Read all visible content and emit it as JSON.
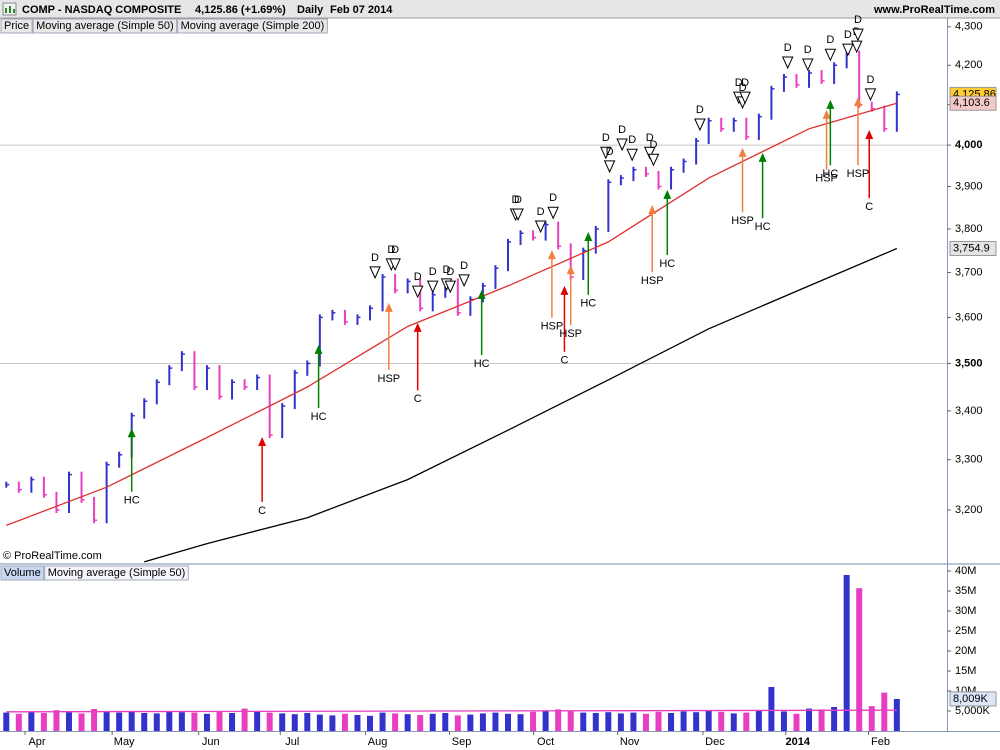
{
  "header": {
    "title": "COMP - NASDAQ COMPOSITE",
    "quote": "4,125.86 (+1.69%)",
    "period": "Daily",
    "date": "Feb 07 2014",
    "site": "www.ProRealTime.com"
  },
  "chart_data": [
    {
      "type": "price",
      "yscale": "log",
      "credit": "© ProRealTime.com",
      "xlim": [
        -0.5,
        75
      ],
      "ylim": [
        3098,
        4371
      ],
      "yticks": [
        {
          "value": 3200,
          "label": "3,200"
        },
        {
          "value": 3300,
          "label": "3,300"
        },
        {
          "value": 3400,
          "label": "3,400"
        },
        {
          "value": 3500,
          "label": "3,500"
        },
        {
          "value": 3600,
          "label": "3,600"
        },
        {
          "value": 3700,
          "label": "3,700"
        },
        {
          "value": 3800,
          "label": "3,800"
        },
        {
          "value": 3900,
          "label": "3,900"
        },
        {
          "value": 4000,
          "label": "4,000"
        },
        {
          "value": 4100,
          "label": "4,100"
        },
        {
          "value": 4200,
          "label": "4,200"
        },
        {
          "value": 4300,
          "label": "4,300"
        }
      ],
      "gridlines": [
        3500,
        4000
      ],
      "series": [
        {
          "name": "Price",
          "color": "#3333cc",
          "down_color": "#e83fc0",
          "values": [
            3250,
            3240,
            3260,
            3230,
            3200,
            3270,
            3220,
            3180,
            3290,
            3310,
            3390,
            3420,
            3460,
            3490,
            3520,
            3450,
            3490,
            3430,
            3460,
            3450,
            3470,
            3350,
            3410,
            3480,
            3500,
            3600,
            3610,
            3590,
            3600,
            3620,
            3690,
            3660,
            3680,
            3620,
            3650,
            3680,
            3610,
            3640,
            3670,
            3710,
            3770,
            3790,
            3780,
            3810,
            3760,
            3690,
            3750,
            3800,
            3910,
            3920,
            3940,
            3930,
            3900,
            3940,
            3960,
            4010,
            4060,
            4040,
            4060,
            4020,
            4070,
            4140,
            4170,
            4150,
            4180,
            4160,
            4200,
            4230,
            4100,
            4090,
            4040,
            4125.86
          ]
        },
        {
          "name": "Moving average (Simple 50)",
          "color": "#e03030",
          "label_color": "#e03030",
          "x": [
            0,
            8,
            16,
            24,
            32,
            40,
            48,
            56,
            64,
            71
          ],
          "values": [
            3170,
            3245,
            3345,
            3450,
            3580,
            3670,
            3770,
            3920,
            4040,
            4103.6
          ]
        },
        {
          "name": "Moving average (Simple 200)",
          "color": "#000000",
          "x": [
            11,
            16,
            24,
            32,
            40,
            48,
            56,
            64,
            71
          ],
          "values": [
            3100,
            3135,
            3185,
            3260,
            3360,
            3465,
            3575,
            3670,
            3754.9
          ]
        }
      ],
      "last_labels": [
        {
          "value": 4125.86,
          "label": "4,125.86",
          "color": "#ffcc33"
        },
        {
          "value": 4103.6,
          "label": "4,103.6",
          "color": "#f5c8c8"
        },
        {
          "value": 3754.9,
          "label": "3,754.9",
          "color": "#e4e4e4"
        }
      ],
      "signal_colors": {
        "HC": "#008000",
        "C": "#e00000",
        "HSP": "#f08040"
      },
      "markers": [
        {
          "text": "D",
          "x": 29.4,
          "y": 3688
        },
        {
          "text": "D",
          "x": 30.7,
          "y": 3706
        },
        {
          "text": "D",
          "x": 31.0,
          "y": 3706
        },
        {
          "text": "D",
          "x": 32.8,
          "y": 3645
        },
        {
          "text": "D",
          "x": 34.0,
          "y": 3656
        },
        {
          "text": "D",
          "x": 35.1,
          "y": 3661
        },
        {
          "text": "D",
          "x": 35.4,
          "y": 3656
        },
        {
          "text": "D",
          "x": 36.5,
          "y": 3670
        },
        {
          "text": "D",
          "x": 40.6,
          "y": 3821
        },
        {
          "text": "D",
          "x": 40.8,
          "y": 3821
        },
        {
          "text": "D",
          "x": 42.6,
          "y": 3793
        },
        {
          "text": "D",
          "x": 43.6,
          "y": 3825
        },
        {
          "text": "D",
          "x": 47.8,
          "y": 3968
        },
        {
          "text": "D",
          "x": 48.1,
          "y": 3935
        },
        {
          "text": "D",
          "x": 49.1,
          "y": 3988
        },
        {
          "text": "D",
          "x": 49.9,
          "y": 3963
        },
        {
          "text": "D",
          "x": 51.3,
          "y": 3968
        },
        {
          "text": "D",
          "x": 51.6,
          "y": 3951
        },
        {
          "text": "D",
          "x": 55.3,
          "y": 4037
        },
        {
          "text": "D",
          "x": 58.4,
          "y": 4104
        },
        {
          "text": "D",
          "x": 58.7,
          "y": 4092
        },
        {
          "text": "D",
          "x": 58.9,
          "y": 4104
        },
        {
          "text": "D",
          "x": 62.3,
          "y": 4193
        },
        {
          "text": "D",
          "x": 63.9,
          "y": 4188
        },
        {
          "text": "D",
          "x": 65.7,
          "y": 4213
        },
        {
          "text": "D",
          "x": 67.1,
          "y": 4226
        },
        {
          "text": "D",
          "x": 67.8,
          "y": 4234
        },
        {
          "text": "D",
          "x": 67.9,
          "y": 4265
        },
        {
          "text": "D",
          "x": 68.9,
          "y": 4112
        }
      ],
      "signals": [
        {
          "text": "HC",
          "x": 10.0,
          "y": 3364,
          "y0": 3236
        },
        {
          "text": "C",
          "x": 20.4,
          "y": 3346,
          "y0": 3216
        },
        {
          "text": "HC",
          "x": 24.9,
          "y": 3540,
          "y0": 3406
        },
        {
          "text": "HSP",
          "x": 30.5,
          "y": 3632,
          "y0": 3486
        },
        {
          "text": "C",
          "x": 32.8,
          "y": 3588,
          "y0": 3443
        },
        {
          "text": "HC",
          "x": 37.9,
          "y": 3661,
          "y0": 3518
        },
        {
          "text": "HSP",
          "x": 43.5,
          "y": 3751,
          "y0": 3599
        },
        {
          "text": "C",
          "x": 44.5,
          "y": 3670,
          "y0": 3525
        },
        {
          "text": "HSP",
          "x": 45.0,
          "y": 3717,
          "y0": 3583
        },
        {
          "text": "HC",
          "x": 46.4,
          "y": 3793,
          "y0": 3650
        },
        {
          "text": "HSP",
          "x": 51.5,
          "y": 3856,
          "y0": 3701
        },
        {
          "text": "HC",
          "x": 52.7,
          "y": 3892,
          "y0": 3740
        },
        {
          "text": "HSP",
          "x": 58.7,
          "y": 3993,
          "y0": 3839
        },
        {
          "text": "HC",
          "x": 60.3,
          "y": 3981,
          "y0": 3825
        },
        {
          "text": "HSP",
          "x": 65.4,
          "y": 4087,
          "y0": 3940
        },
        {
          "text": "HC",
          "x": 65.7,
          "y": 4112,
          "y0": 3951
        },
        {
          "text": "HSP",
          "x": 67.9,
          "y": 4119,
          "y0": 3951
        },
        {
          "text": "C",
          "x": 68.8,
          "y": 4037,
          "y0": 3872
        }
      ]
    },
    {
      "type": "volume",
      "xlim": [
        -0.5,
        75
      ],
      "ylim": [
        0,
        41.5
      ],
      "xticks": [
        {
          "value": 2.45,
          "label": "Apr"
        },
        {
          "value": 9.4,
          "label": "May"
        },
        {
          "value": 16.3,
          "label": "Jun"
        },
        {
          "value": 22.8,
          "label": "Jul"
        },
        {
          "value": 29.6,
          "label": "Aug"
        },
        {
          "value": 36.3,
          "label": "Sep"
        },
        {
          "value": 43.0,
          "label": "Oct"
        },
        {
          "value": 49.7,
          "label": "Nov"
        },
        {
          "value": 56.5,
          "label": "Dec"
        },
        {
          "value": 63.1,
          "label": "2014"
        },
        {
          "value": 69.7,
          "label": "Feb"
        }
      ],
      "yticks": [
        {
          "value": 5,
          "label": "5,000K"
        },
        {
          "value": 10,
          "label": "10M"
        },
        {
          "value": 15,
          "label": "15M"
        },
        {
          "value": 20,
          "label": "20M"
        },
        {
          "value": 25,
          "label": "25M"
        },
        {
          "value": 30,
          "label": "30M"
        },
        {
          "value": 35,
          "label": "35M"
        },
        {
          "value": 40,
          "label": "40M"
        }
      ],
      "series": [
        {
          "name": "Volume",
          "color": "#3333cc",
          "down_color": "#e83fc0",
          "values": [
            4.6,
            4.3,
            4.8,
            4.5,
            5.2,
            4.7,
            4.4,
            5.5,
            4.9,
            4.6,
            4.8,
            4.5,
            4.4,
            5.0,
            4.7,
            4.6,
            4.3,
            4.9,
            4.5,
            5.6,
            4.8,
            4.6,
            4.4,
            4.2,
            4.5,
            4.1,
            3.9,
            4.3,
            4.0,
            3.8,
            4.6,
            4.4,
            4.2,
            4.0,
            4.3,
            4.5,
            3.9,
            4.1,
            4.4,
            4.6,
            4.3,
            4.2,
            4.8,
            5.1,
            5.4,
            4.9,
            4.6,
            4.5,
            4.7,
            4.4,
            4.6,
            4.3,
            4.8,
            4.5,
            4.9,
            4.7,
            5.0,
            4.8,
            4.4,
            4.6,
            5.2,
            11.0,
            4.9,
            4.3,
            5.6,
            5.4,
            6.0,
            39.0,
            35.7,
            6.2,
            9.6,
            8.009
          ]
        },
        {
          "name": "Moving average (Simple 50)",
          "color": "#e83fc0",
          "label_color": "#e83fc0",
          "x": [
            0,
            71
          ],
          "values": [
            4.8,
            5.2
          ]
        }
      ],
      "last_label": {
        "value": 8.009,
        "label": "8,009K",
        "color": "#dde6f7"
      }
    }
  ]
}
